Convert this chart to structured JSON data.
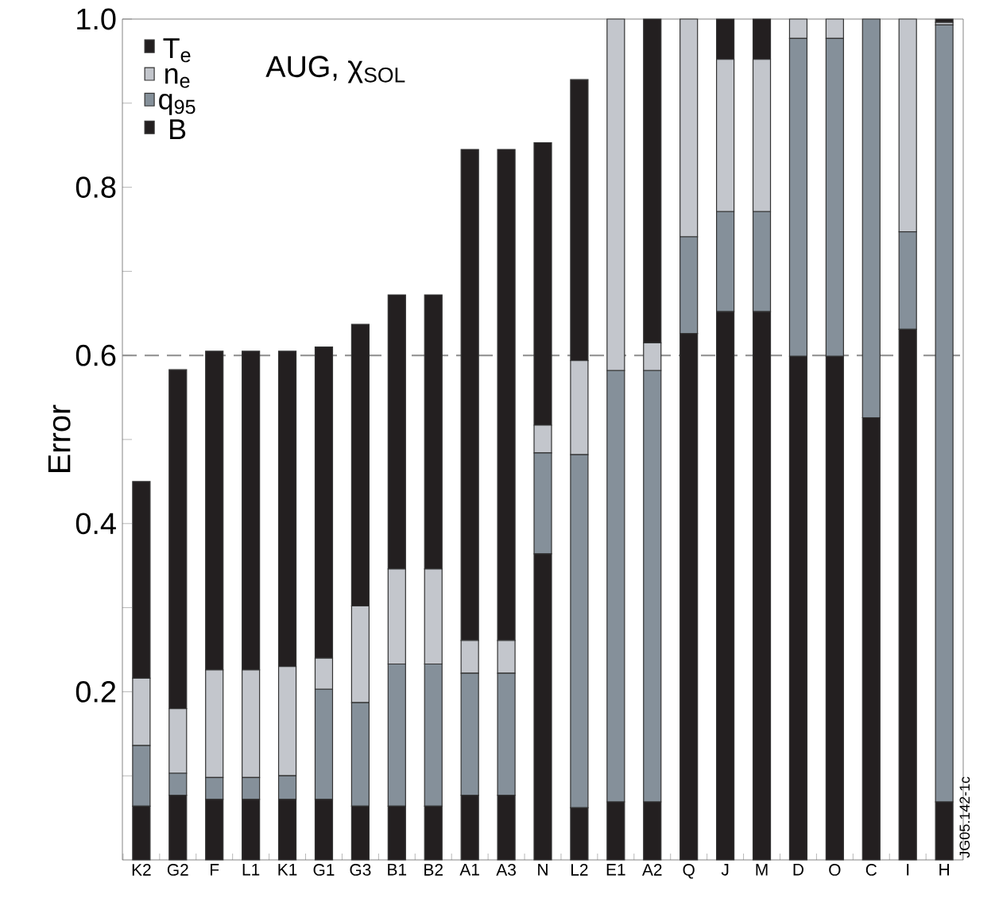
{
  "chart_data": {
    "type": "bar",
    "stacked": true,
    "ylabel": "Error",
    "legend_title": "AUG, χ$_{SOL}$",
    "legend": "top left",
    "categories": [
      "K2",
      "G2",
      "F",
      "L1",
      "K1",
      "G1",
      "G3",
      "B1",
      "B2",
      "A1",
      "A3",
      "N",
      "L2",
      "E1",
      "A2",
      "Q",
      "J",
      "M",
      "D",
      "O",
      "C",
      "I",
      "H"
    ],
    "series": [
      {
        "name": "B",
        "color": "#231f20",
        "values": [
          0.064,
          0.077,
          0.072,
          0.072,
          0.072,
          0.072,
          0.064,
          0.064,
          0.064,
          0.077,
          0.077,
          0.364,
          0.062,
          0.069,
          0.069,
          0.626,
          0.652,
          0.652,
          0.599,
          0.599,
          0.526,
          0.631,
          0.069
        ]
      },
      {
        "name": "q$_{95}$",
        "color": "#85909a",
        "values": [
          0.072,
          0.026,
          0.026,
          0.026,
          0.028,
          0.131,
          0.123,
          0.169,
          0.169,
          0.145,
          0.145,
          0.12,
          0.42,
          0.513,
          0.513,
          0.115,
          0.119,
          0.119,
          0.378,
          0.378,
          0.474,
          0.116,
          0.924
        ]
      },
      {
        "name": "n$_{e}$",
        "color": "#c3c6cc",
        "values": [
          0.08,
          0.077,
          0.128,
          0.128,
          0.13,
          0.037,
          0.115,
          0.113,
          0.113,
          0.039,
          0.039,
          0.033,
          0.112,
          0.418,
          0.033,
          0.259,
          0.181,
          0.181,
          0.023,
          0.023,
          0,
          0.253,
          0.003
        ]
      },
      {
        "name": "T$_{e}$",
        "color": "#231f20",
        "values": [
          0.234,
          0.403,
          0.379,
          0.379,
          0.375,
          0.37,
          0.335,
          0.326,
          0.326,
          0.584,
          0.584,
          0.336,
          0.334,
          0,
          0.385,
          0,
          0.048,
          0.048,
          0,
          0,
          0,
          0,
          0.004
        ]
      }
    ],
    "ylim": [
      0,
      1.0
    ],
    "yticks": [
      {
        "value": 0.1,
        "label": null
      },
      0.2,
      {
        "value": 0.3,
        "label": null
      },
      0.4,
      {
        "value": 0.5,
        "label": null
      },
      0.6,
      {
        "value": 0.7,
        "label": null
      },
      0.8,
      {
        "value": 0.9,
        "label": null
      },
      {
        "value": 1.0,
        "label": "1.0"
      }
    ],
    "ref_lines": [
      {
        "axis": "y",
        "value": 0.6,
        "color": "#8c8c8c",
        "line_style": "dashed"
      }
    ],
    "annotations": [
      "JG05.142-1c"
    ]
  }
}
